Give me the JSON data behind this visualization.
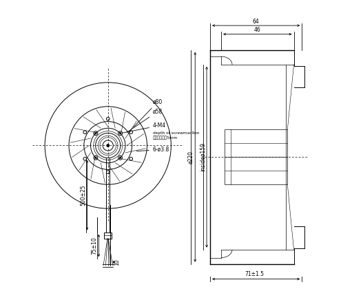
{
  "bg_color": "#ffffff",
  "line_color": "#000000",
  "fig_width": 5.11,
  "fig_height": 4.23,
  "dpi": 100,
  "annotations_front": {
    "phi80": "ø80",
    "phi58": "ø58",
    "four_m4": "4-M4",
    "depth": "depth of screwmac9en",
    "chinese": "螺紋深度大于5mm",
    "six_holes": "6-ø3.8",
    "cable_len": "500±25",
    "sheath_len": "75±10",
    "wire_dia": "10"
  },
  "annotations_side": {
    "top_dim": "71±1.5",
    "phi220": "ø220",
    "inside_phi159": "insideø159",
    "dim46": "46",
    "dim64": "64"
  }
}
